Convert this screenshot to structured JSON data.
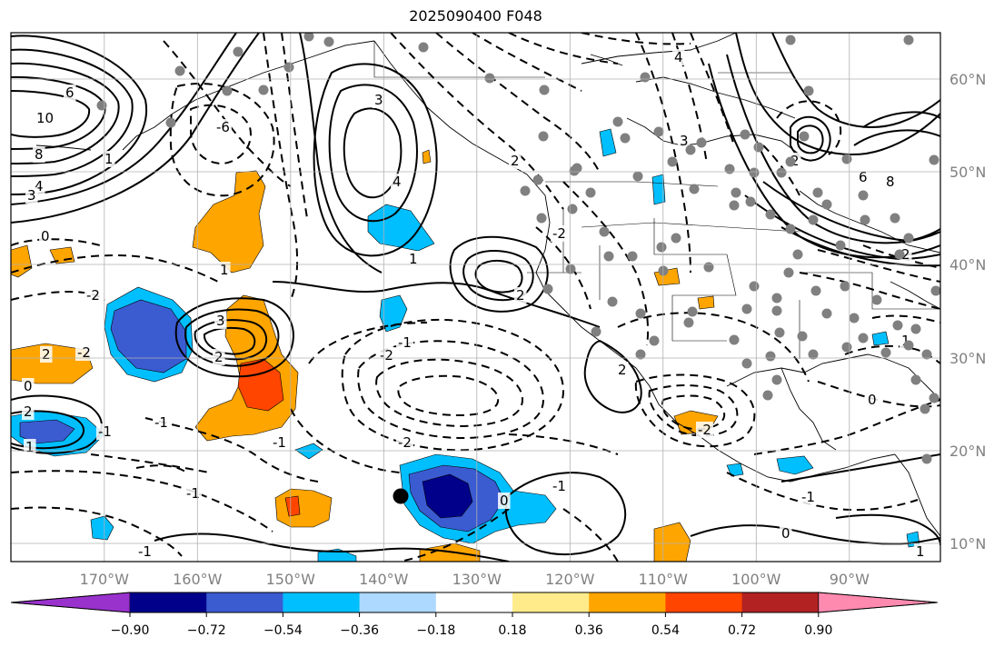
{
  "title": "2025090400 F048",
  "lat_labels": [
    "60°N",
    "50°N",
    "40°N",
    "30°N",
    "20°N",
    "10°N"
  ],
  "lon_labels": [
    "170°W",
    "160°W",
    "150°W",
    "140°W",
    "130°W",
    "120°W",
    "110°W",
    "100°W",
    "90°W"
  ],
  "colorbar": {
    "colors": [
      "#9932cc",
      "#00008b",
      "#3b5bd1",
      "#00bfff",
      "#add8ff",
      "#ffffff",
      "#ffeb8a",
      "#ffa500",
      "#ff4500",
      "#b22222",
      "#ff8aaf"
    ],
    "ticks": [
      "−0.90",
      "−0.72",
      "−0.54",
      "−0.36",
      "−0.18",
      "0.18",
      "0.36",
      "0.54",
      "0.72",
      "0.90"
    ]
  },
  "contour_labels": [
    "6",
    "10",
    "8",
    "4",
    "3",
    "1",
    "0",
    "-6",
    "-2",
    "1",
    "3",
    "4",
    "2",
    "1",
    "2",
    "-2",
    "-1",
    "-2",
    "2",
    "3",
    "2",
    "2",
    "-2",
    "0",
    "-1",
    "-1",
    "1",
    "-1",
    "2",
    "-1",
    "0",
    "-1",
    "-1",
    "-2",
    "3",
    "1",
    "-1",
    "0",
    "2",
    "-2",
    "1",
    "0",
    "2",
    "4",
    "6",
    "8"
  ]
}
